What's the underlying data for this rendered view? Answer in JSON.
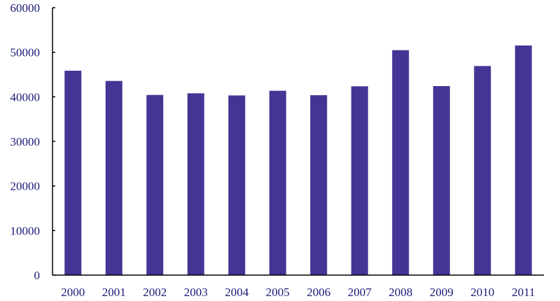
{
  "chart_data": {
    "type": "bar",
    "title": "",
    "xlabel": "",
    "ylabel": "",
    "categories": [
      "2000",
      "2001",
      "2002",
      "2003",
      "2004",
      "2005",
      "2006",
      "2007",
      "2008",
      "2009",
      "2010",
      "2011"
    ],
    "values": [
      45860,
      43560,
      40420,
      40790,
      40310,
      41360,
      40370,
      42360,
      50470,
      42410,
      46910,
      51520
    ],
    "ylim": [
      0,
      60000
    ],
    "yticks": [
      0,
      10000,
      20000,
      30000,
      40000,
      50000,
      60000
    ],
    "grid": false,
    "legend": "none",
    "colors": {
      "bar": "#433594",
      "text": "#1b1b7a",
      "axis": "#000000"
    }
  }
}
